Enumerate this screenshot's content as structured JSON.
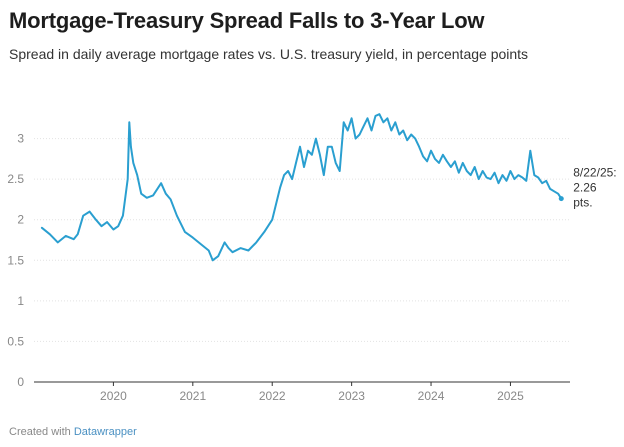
{
  "title": "Mortgage-Treasury Spread Falls to 3-Year Low",
  "subtitle": "Spread in daily average mortgage rates vs. U.S. treasury yield, in percentage points",
  "footer": {
    "prefix": "Created with",
    "link": "Datawrapper"
  },
  "colors": {
    "line": "#2a9fd0",
    "grid": "#e2e2e2",
    "axis_text": "#888888"
  },
  "chart_data": {
    "type": "line",
    "title": "Mortgage-Treasury Spread Falls to 3-Year Low",
    "subtitle": "Spread in daily average mortgage rates vs. U.S. treasury yield, in percentage points",
    "xlabel": "",
    "ylabel": "",
    "ylim": [
      0,
      3.5
    ],
    "yticks": [
      0,
      0.5,
      1,
      1.5,
      2,
      2.5,
      3
    ],
    "ytick_labels": [
      "0",
      "0.5",
      "1",
      "1.5",
      "2",
      "2.5",
      "3"
    ],
    "xticks": [
      2020,
      2021,
      2022,
      2023,
      2024,
      2025
    ],
    "xtick_labels": [
      "2020",
      "2021",
      "2022",
      "2023",
      "2024",
      "2025"
    ],
    "xlim": [
      2019.0,
      2025.75
    ],
    "grid": true,
    "annotation": {
      "lines": [
        "8/22/25:",
        "2.26",
        "pts."
      ]
    },
    "series": [
      {
        "color": "#2a9fd0",
        "x": [
          2019.1,
          2019.2,
          2019.3,
          2019.4,
          2019.5,
          2019.55,
          2019.62,
          2019.7,
          2019.78,
          2019.85,
          2019.92,
          2020.0,
          2020.06,
          2020.12,
          2020.18,
          2020.2,
          2020.22,
          2020.25,
          2020.3,
          2020.35,
          2020.42,
          2020.5,
          2020.6,
          2020.66,
          2020.72,
          2020.8,
          2020.9,
          2021.0,
          2021.1,
          2021.2,
          2021.25,
          2021.32,
          2021.4,
          2021.45,
          2021.5,
          2021.6,
          2021.7,
          2021.8,
          2021.9,
          2022.0,
          2022.05,
          2022.1,
          2022.15,
          2022.2,
          2022.25,
          2022.3,
          2022.35,
          2022.4,
          2022.45,
          2022.5,
          2022.55,
          2022.6,
          2022.65,
          2022.7,
          2022.75,
          2022.8,
          2022.85,
          2022.9,
          2022.95,
          2023.0,
          2023.05,
          2023.1,
          2023.15,
          2023.2,
          2023.25,
          2023.3,
          2023.35,
          2023.4,
          2023.45,
          2023.5,
          2023.55,
          2023.6,
          2023.65,
          2023.7,
          2023.75,
          2023.8,
          2023.85,
          2023.9,
          2023.95,
          2024.0,
          2024.05,
          2024.1,
          2024.15,
          2024.2,
          2024.25,
          2024.3,
          2024.35,
          2024.4,
          2024.45,
          2024.5,
          2024.55,
          2024.6,
          2024.65,
          2024.7,
          2024.75,
          2024.8,
          2024.85,
          2024.9,
          2024.95,
          2025.0,
          2025.05,
          2025.1,
          2025.15,
          2025.2,
          2025.25,
          2025.3,
          2025.35,
          2025.4,
          2025.45,
          2025.5,
          2025.55,
          2025.6,
          2025.64
        ],
        "y": [
          1.9,
          1.82,
          1.72,
          1.8,
          1.76,
          1.82,
          2.05,
          2.1,
          2.0,
          1.92,
          1.97,
          1.88,
          1.92,
          2.05,
          2.5,
          3.2,
          2.9,
          2.7,
          2.55,
          2.32,
          2.27,
          2.3,
          2.45,
          2.32,
          2.25,
          2.05,
          1.85,
          1.78,
          1.7,
          1.62,
          1.5,
          1.55,
          1.72,
          1.65,
          1.6,
          1.65,
          1.62,
          1.72,
          1.85,
          2.0,
          2.2,
          2.4,
          2.55,
          2.6,
          2.5,
          2.7,
          2.9,
          2.65,
          2.85,
          2.8,
          3.0,
          2.8,
          2.55,
          2.9,
          2.9,
          2.7,
          2.6,
          3.2,
          3.1,
          3.25,
          3.0,
          3.05,
          3.15,
          3.25,
          3.1,
          3.28,
          3.3,
          3.2,
          3.25,
          3.1,
          3.2,
          3.05,
          3.1,
          2.98,
          3.05,
          3.0,
          2.9,
          2.78,
          2.72,
          2.85,
          2.75,
          2.7,
          2.8,
          2.72,
          2.65,
          2.72,
          2.58,
          2.7,
          2.6,
          2.55,
          2.65,
          2.5,
          2.6,
          2.52,
          2.5,
          2.58,
          2.45,
          2.55,
          2.48,
          2.6,
          2.5,
          2.55,
          2.52,
          2.48,
          2.85,
          2.55,
          2.52,
          2.45,
          2.48,
          2.38,
          2.35,
          2.32,
          2.26
        ]
      }
    ]
  }
}
